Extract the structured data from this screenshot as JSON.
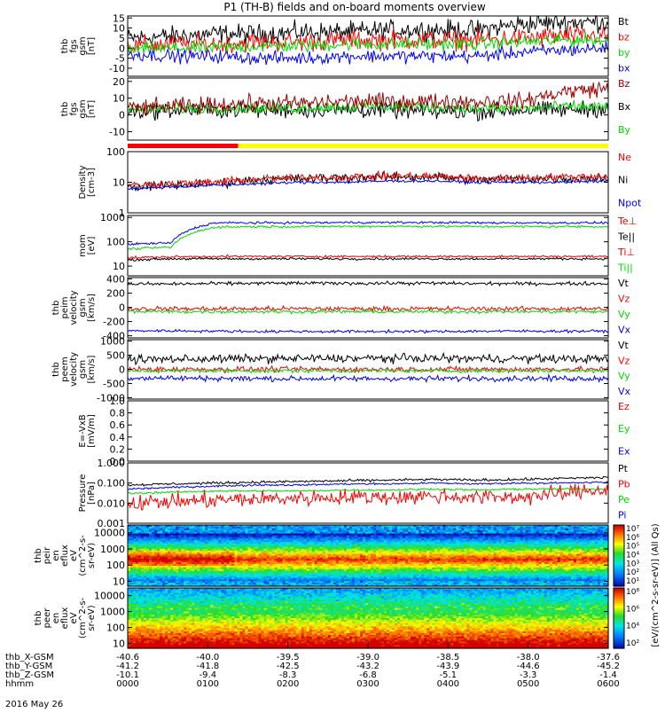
{
  "title": "P1 (TH-B) fields and on-board moments overview",
  "date": "2016 May 26",
  "colors": {
    "black": "#000000",
    "red": "#ff0000",
    "green": "#00dd00",
    "blue": "#0000ff",
    "darkred": "#a00000",
    "yellow": "#ffff00"
  },
  "chart_data": [
    {
      "type": "line",
      "id": "fgs",
      "ylabel": [
        "thb",
        "fgs",
        "gsm",
        "[nT]"
      ],
      "ticks": [
        "15",
        "10",
        "5",
        "0",
        "-5",
        "-10"
      ],
      "ylim": [
        -14,
        16
      ],
      "legend": [
        {
          "label": "Bt",
          "color": "#000000"
        },
        {
          "label": "bz",
          "color": "#ff0000"
        },
        {
          "label": "by",
          "color": "#00dd00"
        },
        {
          "label": "bx",
          "color": "#0000ff"
        }
      ],
      "series": [
        {
          "color": "#000000",
          "base": [
            5,
            6,
            7,
            7,
            8,
            8,
            9,
            9,
            9,
            12,
            13,
            13
          ],
          "noise": 3
        },
        {
          "color": "#ff0000",
          "base": [
            1,
            2,
            2,
            3,
            3,
            4,
            4,
            4,
            4,
            5,
            6,
            6
          ],
          "noise": 3
        },
        {
          "color": "#00dd00",
          "base": [
            -1,
            0,
            0,
            1,
            1,
            2,
            2,
            2,
            2,
            3,
            4,
            4
          ],
          "noise": 2
        },
        {
          "color": "#0000ff",
          "base": [
            -3,
            -4,
            -4,
            -5,
            -5,
            -4,
            -4,
            -4,
            -4,
            -2,
            -1,
            0
          ],
          "noise": 2
        }
      ]
    },
    {
      "type": "line",
      "id": "fgs2",
      "ylabel": [
        "thb",
        "fgs",
        "gsm",
        "[nT]"
      ],
      "ticks": [
        "20",
        "10",
        "0",
        "-10"
      ],
      "ylim": [
        -15,
        22
      ],
      "legend": [
        {
          "label": "Bz",
          "color": "#a00000"
        },
        {
          "label": "Bx",
          "color": "#000000"
        },
        {
          "label": "By",
          "color": "#00dd00"
        }
      ],
      "series": [
        {
          "color": "#000000",
          "base": [
            2,
            3,
            3,
            3,
            3,
            3,
            3,
            2,
            2,
            3,
            3,
            4
          ],
          "noise": 3
        },
        {
          "color": "#00dd00",
          "base": [
            3,
            4,
            4,
            4,
            4,
            5,
            5,
            5,
            4,
            4,
            5,
            5
          ],
          "noise": 2
        },
        {
          "color": "#a00000",
          "base": [
            4,
            5,
            6,
            7,
            7,
            8,
            8,
            8,
            8,
            8,
            14,
            16
          ],
          "noise": 3
        }
      ]
    },
    {
      "type": "line",
      "id": "density",
      "ylabel": [
        "Density",
        "[cm-3]"
      ],
      "ticks": [
        "100",
        "10",
        "1"
      ],
      "ylim": [
        1,
        100
      ],
      "log": true,
      "legend": [
        {
          "label": "Ne",
          "color": "#ff0000"
        },
        {
          "label": "Ni",
          "color": "#000000"
        },
        {
          "label": "Npot",
          "color": "#0000ff"
        }
      ],
      "series": [
        {
          "color": "#000000",
          "base": [
            7,
            8,
            9,
            12,
            13,
            14,
            15,
            15,
            12,
            13,
            13,
            14
          ],
          "noise": 0.1,
          "logn": true
        },
        {
          "color": "#ff0000",
          "base": [
            8,
            9,
            10,
            13,
            14,
            15,
            16,
            16,
            13,
            14,
            15,
            16
          ],
          "noise": 0.08,
          "logn": true
        },
        {
          "color": "#0000ff",
          "base": [
            6,
            7,
            8,
            9,
            10,
            10,
            11,
            11,
            10,
            10,
            10,
            11
          ],
          "noise": 0.03,
          "logn": true
        }
      ]
    },
    {
      "type": "line",
      "id": "temp",
      "ylabel": [
        "mom",
        "[eV]"
      ],
      "ticks": [
        "1000",
        "100",
        "10"
      ],
      "ylim": [
        4,
        1200
      ],
      "log": true,
      "legend": [
        {
          "label": "Te⊥",
          "color": "#ff0000"
        },
        {
          "label": "Te||",
          "color": "#000000"
        },
        {
          "label": "Ti⊥",
          "color": "#ff0000"
        },
        {
          "label": "Ti||",
          "color": "#00dd00"
        }
      ],
      "series": [
        {
          "color": "#0000ff",
          "base": [
            80,
            90,
            600,
            600,
            600,
            620,
            620,
            620,
            600,
            600,
            600,
            600
          ],
          "noise": 0.03,
          "logn": true
        },
        {
          "color": "#00dd00",
          "base": [
            50,
            60,
            400,
            420,
            420,
            430,
            430,
            430,
            420,
            420,
            420,
            420
          ],
          "noise": 0.03,
          "logn": true
        },
        {
          "color": "#ff0000",
          "base": [
            22,
            24,
            25,
            25,
            25,
            25,
            25,
            25,
            25,
            25,
            25,
            25
          ],
          "noise": 0.03,
          "logn": true
        },
        {
          "color": "#000000",
          "base": [
            18,
            20,
            20,
            20,
            20,
            20,
            20,
            20,
            20,
            20,
            20,
            20
          ],
          "noise": 0.03,
          "logn": true
        }
      ]
    },
    {
      "type": "line",
      "id": "peim",
      "ylabel": [
        "thb",
        "peim",
        "velocity",
        "gsm",
        "[km/s]"
      ],
      "ticks": [
        "400",
        "200",
        "0",
        "-200",
        "-400"
      ],
      "ylim": [
        -430,
        420
      ],
      "legend": [
        {
          "label": "Vt",
          "color": "#000000"
        },
        {
          "label": "Vz",
          "color": "#ff0000"
        },
        {
          "label": "Vy",
          "color": "#00dd00"
        },
        {
          "label": "Vx",
          "color": "#0000ff"
        }
      ],
      "series": [
        {
          "color": "#000000",
          "base": [
            330,
            330,
            335,
            340,
            340,
            340,
            340,
            340,
            335,
            335,
            335,
            335
          ],
          "noise": 15
        },
        {
          "color": "#ff0000",
          "base": [
            -20,
            -20,
            -20,
            -20,
            -20,
            -20,
            -20,
            -20,
            -20,
            -20,
            -20,
            -20
          ],
          "noise": 20
        },
        {
          "color": "#00dd00",
          "base": [
            -60,
            -60,
            -60,
            -60,
            -60,
            -60,
            -60,
            -60,
            -60,
            -60,
            -60,
            -60
          ],
          "noise": 15
        },
        {
          "color": "#0000ff",
          "base": [
            -330,
            -330,
            -335,
            -340,
            -340,
            -340,
            -340,
            -340,
            -335,
            -335,
            -335,
            -335
          ],
          "noise": 12
        }
      ]
    },
    {
      "type": "line",
      "id": "peem",
      "ylabel": [
        "thb",
        "peem",
        "velocity",
        "gsm",
        "[km/s]"
      ],
      "ticks": [
        "1000",
        "500",
        "0",
        "-500",
        "-1000"
      ],
      "ylim": [
        -1050,
        1050
      ],
      "legend": [
        {
          "label": "Vt",
          "color": "#000000"
        },
        {
          "label": "Vz",
          "color": "#ff0000"
        },
        {
          "label": "Vy",
          "color": "#00dd00"
        },
        {
          "label": "Vx",
          "color": "#0000ff"
        }
      ],
      "series": [
        {
          "color": "#000000",
          "base": [
            350,
            360,
            370,
            380,
            380,
            390,
            390,
            390,
            380,
            380,
            370,
            370
          ],
          "noise": 90
        },
        {
          "color": "#ff0000",
          "base": [
            0,
            0,
            0,
            0,
            0,
            0,
            0,
            0,
            0,
            0,
            0,
            0
          ],
          "noise": 60
        },
        {
          "color": "#00dd00",
          "base": [
            -50,
            -50,
            -50,
            -50,
            -50,
            -50,
            -50,
            -50,
            -50,
            -50,
            -50,
            -50
          ],
          "noise": 40
        },
        {
          "color": "#0000ff",
          "base": [
            -300,
            -310,
            -320,
            -330,
            -330,
            -330,
            -330,
            -330,
            -320,
            -320,
            -320,
            -320
          ],
          "noise": 60
        }
      ]
    },
    {
      "type": "line",
      "id": "efield",
      "ylabel": [
        "E=-VxB",
        "[mV/m]"
      ],
      "ticks": [
        "1.0",
        "0.8",
        "0.6",
        "0.4",
        "0.2",
        "0.0"
      ],
      "ylim": [
        0,
        1
      ],
      "legend": [
        {
          "label": "Ez",
          "color": "#ff0000"
        },
        {
          "label": "Ey",
          "color": "#00dd00"
        },
        {
          "label": "Ex",
          "color": "#0000ff"
        }
      ],
      "series": []
    },
    {
      "type": "line",
      "id": "pressure",
      "ylabel": [
        "Pressure",
        "[nPa]"
      ],
      "ticks": [
        "1.000",
        "0.100",
        "0.010",
        "0.001"
      ],
      "ylim": [
        0.001,
        1
      ],
      "log": true,
      "legend": [
        {
          "label": "Pt",
          "color": "#000000"
        },
        {
          "label": "Pb",
          "color": "#ff0000"
        },
        {
          "label": "Pe",
          "color": "#00dd00"
        },
        {
          "label": "Pi",
          "color": "#0000ff"
        }
      ],
      "series": [
        {
          "color": "#000000",
          "base": [
            0.08,
            0.09,
            0.1,
            0.11,
            0.12,
            0.13,
            0.14,
            0.15,
            0.14,
            0.15,
            0.17,
            0.19
          ],
          "noise": 0.04,
          "logn": true
        },
        {
          "color": "#0000ff",
          "base": [
            0.05,
            0.06,
            0.07,
            0.08,
            0.08,
            0.09,
            0.09,
            0.1,
            0.09,
            0.1,
            0.1,
            0.11
          ],
          "noise": 0.03,
          "logn": true
        },
        {
          "color": "#00dd00",
          "base": [
            0.03,
            0.035,
            0.04,
            0.04,
            0.04,
            0.045,
            0.045,
            0.05,
            0.045,
            0.05,
            0.05,
            0.05
          ],
          "noise": 0.03,
          "logn": true
        },
        {
          "color": "#ff0000",
          "base": [
            0.01,
            0.012,
            0.014,
            0.016,
            0.018,
            0.02,
            0.02,
            0.022,
            0.02,
            0.02,
            0.03,
            0.05
          ],
          "noise": 0.25,
          "logn": true
        }
      ]
    },
    {
      "type": "heatmap",
      "id": "peir",
      "ylabel": [
        "thb",
        "peir",
        "en",
        "eflux",
        "eV",
        "(cm^2-s-",
        "sr-eV)"
      ],
      "ticks": [
        "10000",
        "1000",
        "100",
        "10"
      ],
      "ylim": [
        5,
        30000
      ],
      "log": true,
      "colorbar_ticks": [
        "10⁷",
        "10⁶",
        "10⁵",
        "10⁴",
        "10³",
        "10²",
        "10¹"
      ]
    },
    {
      "type": "heatmap",
      "id": "peer",
      "ylabel": [
        "thb",
        "peer",
        "en",
        "eflux",
        "eV",
        "(cm^2-s-",
        "sr-eV)"
      ],
      "ticks": [
        "10000",
        "1000",
        "100",
        "10"
      ],
      "ylim": [
        5,
        30000
      ],
      "log": true,
      "colorbar_ticks": [
        "10⁸",
        "10⁶",
        "10⁴",
        "10²"
      ]
    }
  ],
  "segment_bar": {
    "red_fraction": 0.23
  },
  "colorbar_unit": "[eV/(cm^2-s-sr-eV)] (All Qs)",
  "x_axis": {
    "rows": [
      {
        "label": "thb_X-GSM",
        "values": [
          "-40.6",
          "-40.0",
          "-39.5",
          "-39.0",
          "-38.5",
          "-38.0",
          "-37.6"
        ]
      },
      {
        "label": "thb_Y-GSM",
        "values": [
          "-41.2",
          "-41.8",
          "-42.5",
          "-43.2",
          "-43.9",
          "-44.6",
          "-45.2"
        ]
      },
      {
        "label": "thb_Z-GSM",
        "values": [
          "-10.1",
          "-9.4",
          "-8.3",
          "-6.8",
          "-5.1",
          "-3.3",
          "-1.4"
        ]
      },
      {
        "label": "hhmm",
        "values": [
          "0000",
          "0100",
          "0200",
          "0300",
          "0400",
          "0500",
          "0600"
        ]
      }
    ]
  }
}
